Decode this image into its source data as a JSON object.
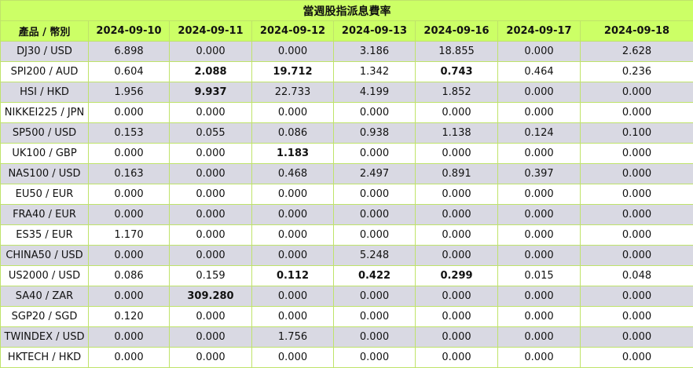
{
  "title": "當週股指派息費率",
  "header": [
    "產品 / 幣別",
    "2024-09-10",
    "2024-09-11",
    "2024-09-12",
    "2024-09-13",
    "2024-09-16",
    "2024-09-17",
    "2024-09-18"
  ],
  "rows": [
    {
      "product": "DJ30 / USD",
      "values": [
        "6.898",
        "0.000",
        "0.000",
        "3.186",
        "18.855",
        "0.000",
        "2.628"
      ],
      "bold": []
    },
    {
      "product": "SPI200 / AUD",
      "values": [
        "0.604",
        "2.088",
        "19.712",
        "1.342",
        "0.743",
        "0.464",
        "0.236"
      ],
      "bold": [
        1,
        2,
        4
      ]
    },
    {
      "product": "HSI / HKD",
      "values": [
        "1.956",
        "9.937",
        "22.733",
        "4.199",
        "1.852",
        "0.000",
        "0.000"
      ],
      "bold": [
        1
      ]
    },
    {
      "product": "NIKKEI225 / JPN",
      "values": [
        "0.000",
        "0.000",
        "0.000",
        "0.000",
        "0.000",
        "0.000",
        "0.000"
      ],
      "bold": []
    },
    {
      "product": "SP500 / USD",
      "values": [
        "0.153",
        "0.055",
        "0.086",
        "0.938",
        "1.138",
        "0.124",
        "0.100"
      ],
      "bold": []
    },
    {
      "product": "UK100 / GBP",
      "values": [
        "0.000",
        "0.000",
        "1.183",
        "0.000",
        "0.000",
        "0.000",
        "0.000"
      ],
      "bold": [
        2
      ]
    },
    {
      "product": "NAS100 / USD",
      "values": [
        "0.163",
        "0.000",
        "0.468",
        "2.497",
        "0.891",
        "0.397",
        "0.000"
      ],
      "bold": []
    },
    {
      "product": "EU50 / EUR",
      "values": [
        "0.000",
        "0.000",
        "0.000",
        "0.000",
        "0.000",
        "0.000",
        "0.000"
      ],
      "bold": []
    },
    {
      "product": "FRA40 / EUR",
      "values": [
        "0.000",
        "0.000",
        "0.000",
        "0.000",
        "0.000",
        "0.000",
        "0.000"
      ],
      "bold": []
    },
    {
      "product": "ES35 / EUR",
      "values": [
        "1.170",
        "0.000",
        "0.000",
        "0.000",
        "0.000",
        "0.000",
        "0.000"
      ],
      "bold": []
    },
    {
      "product": "CHINA50 / USD",
      "values": [
        "0.000",
        "0.000",
        "0.000",
        "5.248",
        "0.000",
        "0.000",
        "0.000"
      ],
      "bold": []
    },
    {
      "product": "US2000 / USD",
      "values": [
        "0.086",
        "0.159",
        "0.112",
        "0.422",
        "0.299",
        "0.015",
        "0.048"
      ],
      "bold": [
        2,
        3,
        4
      ]
    },
    {
      "product": "SA40 / ZAR",
      "values": [
        "0.000",
        "309.280",
        "0.000",
        "0.000",
        "0.000",
        "0.000",
        "0.000"
      ],
      "bold": [
        1
      ]
    },
    {
      "product": "SGP20 / SGD",
      "values": [
        "0.120",
        "0.000",
        "0.000",
        "0.000",
        "0.000",
        "0.000",
        "0.000"
      ],
      "bold": []
    },
    {
      "product": "TWINDEX / USD",
      "values": [
        "0.000",
        "0.000",
        "1.756",
        "0.000",
        "0.000",
        "0.000",
        "0.000"
      ],
      "bold": []
    },
    {
      "product": "HKTECH / HKD",
      "values": [
        "0.000",
        "0.000",
        "0.000",
        "0.000",
        "0.000",
        "0.000",
        "0.000"
      ],
      "bold": []
    }
  ],
  "colors": {
    "header_bg": "#ccff66",
    "stripe_bg": "#d9d9e3",
    "border": "#bfe36a"
  }
}
